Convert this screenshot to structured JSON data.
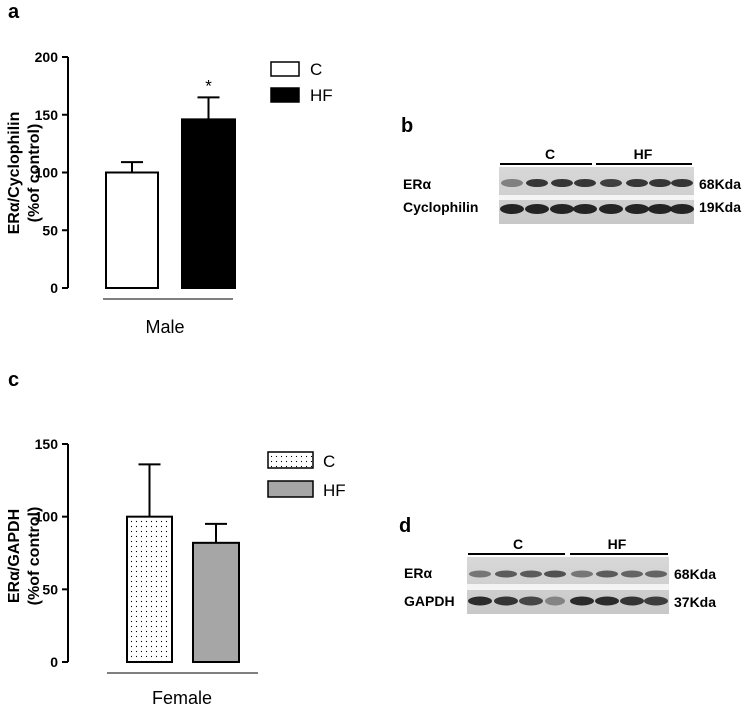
{
  "chart_data": [
    {
      "panel": "a",
      "type": "bar",
      "ylabel_line1": "ERα/Cyclophilin",
      "ylabel_line2": "(%of control)",
      "xlabel": "Male",
      "ylim": [
        0,
        200
      ],
      "yticks": [
        0,
        50,
        100,
        150,
        200
      ],
      "categories": [
        "C",
        "HF"
      ],
      "values": [
        100,
        146
      ],
      "errors": [
        9,
        19
      ],
      "colors": [
        "#ffffff",
        "#000000"
      ],
      "significance": [
        "",
        "*"
      ],
      "legend": [
        {
          "label": "C",
          "fill": "white"
        },
        {
          "label": "HF",
          "fill": "black"
        }
      ]
    },
    {
      "panel": "c",
      "type": "bar",
      "ylabel_line1": "ERα/GAPDH",
      "ylabel_line2": "(%of control)",
      "xlabel": "Female",
      "ylim": [
        0,
        150
      ],
      "yticks": [
        0,
        50,
        100,
        150
      ],
      "categories": [
        "C",
        "HF"
      ],
      "values": [
        100,
        82
      ],
      "errors": [
        36,
        13
      ],
      "colors": [
        "dotted",
        "#a6a6a6"
      ],
      "significance": [
        "",
        ""
      ],
      "legend": [
        {
          "label": "C",
          "fill": "dotted"
        },
        {
          "label": "HF",
          "fill": "gray"
        }
      ]
    }
  ],
  "blots": [
    {
      "panel": "b",
      "groups": [
        "C",
        "HF"
      ],
      "rows": [
        {
          "label": "ERα",
          "size": "68Kda"
        },
        {
          "label": "Cyclophilin",
          "size": "19Kda"
        }
      ]
    },
    {
      "panel": "d",
      "groups": [
        "C",
        "HF"
      ],
      "rows": [
        {
          "label": "ERα",
          "size": "68Kda"
        },
        {
          "label": "GAPDH",
          "size": "37Kda"
        }
      ]
    }
  ]
}
